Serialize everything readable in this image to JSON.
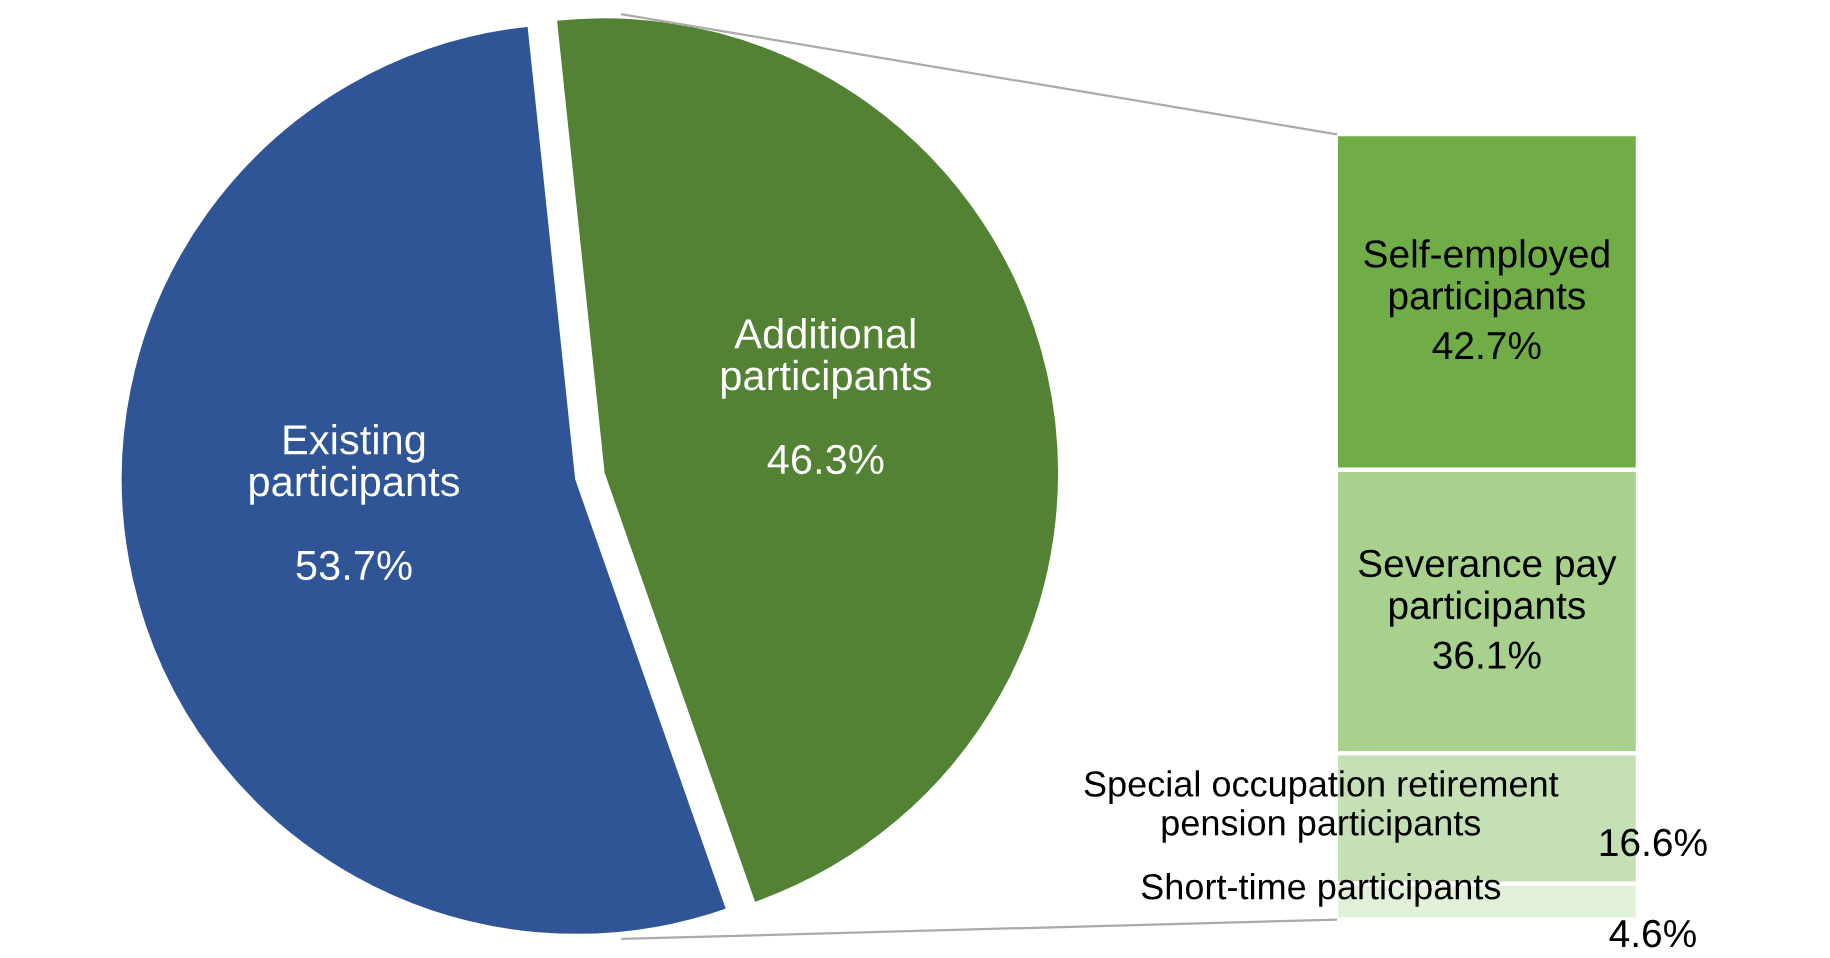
{
  "chart_data": [
    {
      "type": "pie",
      "categories": [
        "Existing\nparticipants",
        "Additional\nparticipants"
      ],
      "values": [
        53.7,
        46.3
      ],
      "colors": [
        "#2f5597",
        "#548235"
      ],
      "value_labels": [
        "53.7%",
        "46.3%"
      ],
      "legend": false
    },
    {
      "type": "bar",
      "stacked": true,
      "categories": [
        null
      ],
      "tick_labels": false,
      "legend": false,
      "series": [
        {
          "name": "Short-time participants",
          "color": "#e2f0d9",
          "values": [
            4.6
          ],
          "value_labels": [
            "4.6%"
          ]
        },
        {
          "name": "Special occupation retirement\npension participants",
          "color": "#c5e0b4",
          "values": [
            16.6
          ],
          "value_labels": [
            "16.6%"
          ]
        },
        {
          "name": "Severance pay\nparticipants",
          "color": "#a9d18e",
          "values": [
            36.1
          ],
          "value_labels": [
            "36.1%"
          ]
        },
        {
          "name": "Self-employed\nparticipants",
          "color": "#70ad47",
          "values": [
            42.7
          ],
          "value_labels": [
            "42.7%"
          ]
        }
      ]
    }
  ]
}
